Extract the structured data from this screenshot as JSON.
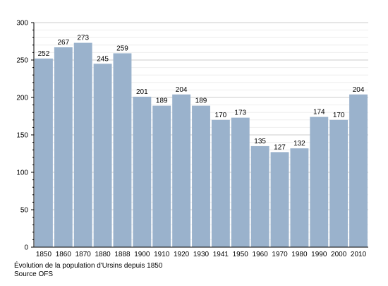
{
  "chart_data": {
    "type": "bar",
    "categories": [
      "1850",
      "1860",
      "1870",
      "1880",
      "1888",
      "1900",
      "1910",
      "1920",
      "1930",
      "1941",
      "1950",
      "1960",
      "1970",
      "1980",
      "1990",
      "2000",
      "2010"
    ],
    "values": [
      252,
      267,
      273,
      245,
      259,
      201,
      189,
      204,
      189,
      170,
      173,
      135,
      127,
      132,
      174,
      170,
      204
    ],
    "data_labels": [
      "252",
      "267",
      "273",
      "245",
      "259",
      "201",
      "189",
      "204",
      "189",
      "170",
      "173",
      "135",
      "127",
      "132",
      "174",
      "170",
      "204"
    ],
    "y_ticks": [
      0,
      50,
      100,
      150,
      200,
      250,
      300
    ],
    "ylim": [
      0,
      300
    ],
    "grid": true,
    "bar_color": "#9ab2cc",
    "grid_color": "#d0d0d0",
    "title": "",
    "xlabel": "",
    "ylabel": ""
  },
  "caption": {
    "line1": "Évolution de la population d'Ursins depuis 1850",
    "line2": "Source OFS"
  }
}
